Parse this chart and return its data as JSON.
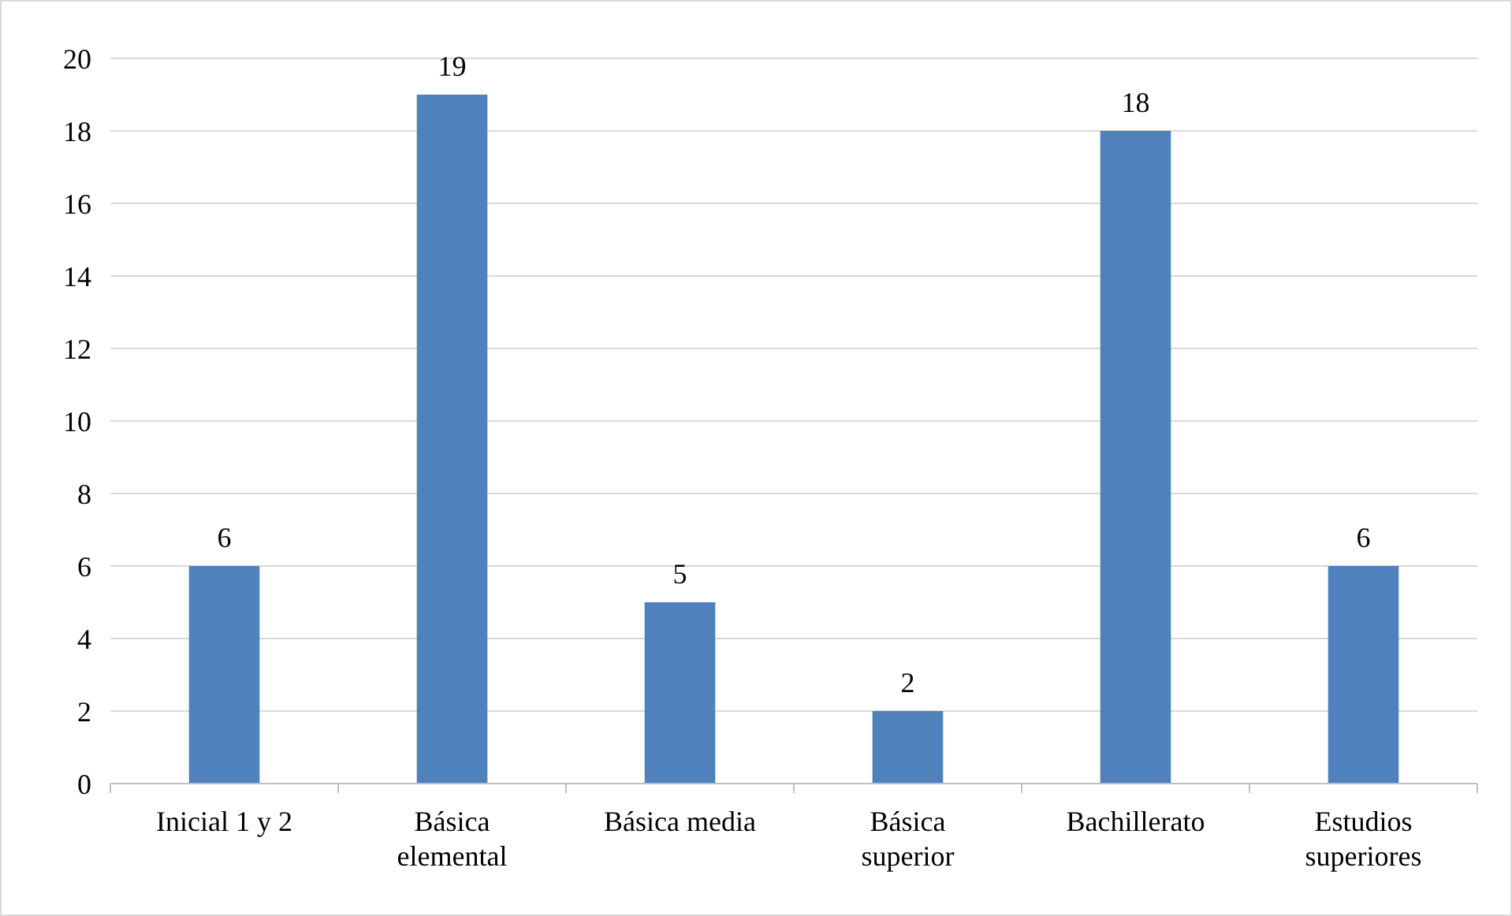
{
  "chart_data": {
    "type": "bar",
    "categories": [
      "Inicial 1 y 2",
      "Básica elemental",
      "Básica media",
      "Básica superior",
      "Bachillerato",
      "Estudios superiores"
    ],
    "values": [
      6,
      19,
      5,
      2,
      18,
      6
    ],
    "color": "#4f81bd",
    "ylim": [
      0,
      20
    ],
    "yticks": [
      0,
      2,
      4,
      6,
      8,
      10,
      12,
      14,
      16,
      18,
      20
    ],
    "grid": "y",
    "data_labels": true
  }
}
